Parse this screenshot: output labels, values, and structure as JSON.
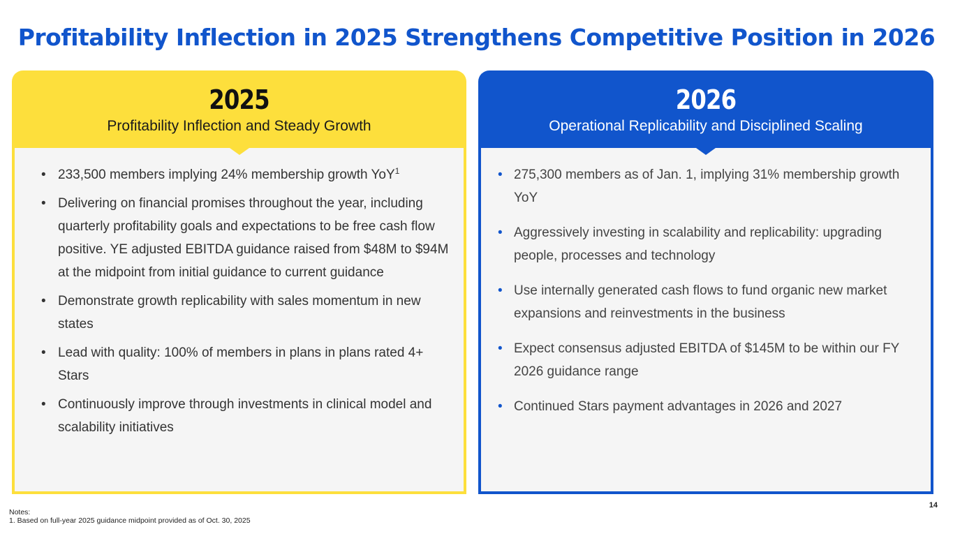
{
  "title": "Profitability Inflection in 2025 Strengthens Competitive Position in 2026",
  "colors": {
    "yellow": "#fddf3c",
    "blue": "#1155cc"
  },
  "left": {
    "year": "2025",
    "subtitle": "Profitability Inflection and Steady Growth",
    "bullets": [
      "233,500 members implying 24% membership growth YoY",
      "Delivering on financial promises throughout the year, including quarterly profitability goals and expectations to be free cash flow positive. YE adjusted EBITDA guidance raised from $48M to $94M at the midpoint from initial guidance to current guidance",
      "Demonstrate growth replicability with sales momentum in new states",
      "Lead with quality: 100% of members in plans in plans rated 4+ Stars",
      "Continuously improve through investments in clinical model and scalability initiatives"
    ],
    "footnote_ref": "1"
  },
  "right": {
    "year": "2026",
    "subtitle": "Operational Replicability and Disciplined Scaling",
    "bullets": [
      "275,300 members as of Jan. 1, implying 31% membership growth YoY",
      "Aggressively investing in scalability and replicability: upgrading people, processes and technology",
      "Use internally generated cash flows to fund organic new market expansions and reinvestments in the business",
      "Expect consensus adjusted EBITDA of $145M to be within our FY 2026 guidance range",
      "Continued Stars payment advantages in 2026 and 2027"
    ]
  },
  "notes": {
    "label": "Notes:",
    "items": [
      "1. Based on full-year 2025 guidance midpoint provided as of Oct. 30, 2025"
    ]
  },
  "page_number": "14"
}
